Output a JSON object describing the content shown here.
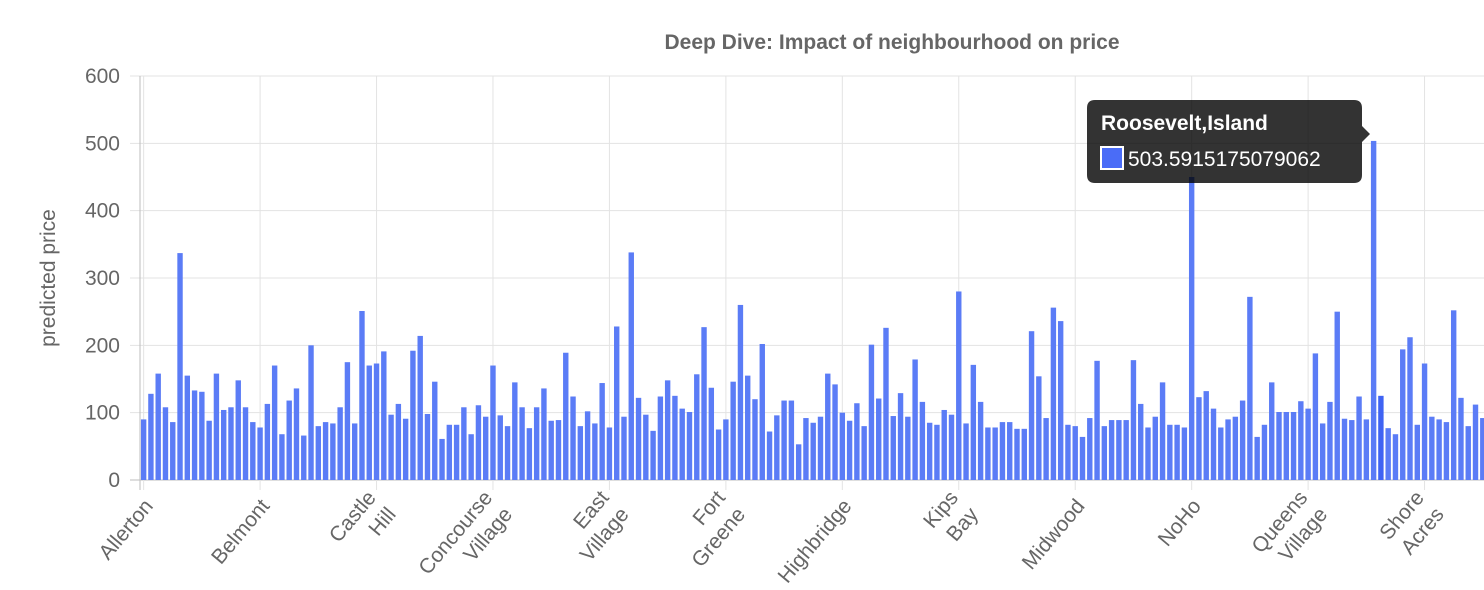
{
  "chart_data": {
    "type": "bar",
    "title": "Deep Dive: Impact of neighbourhood on price",
    "xlabel": "",
    "ylabel": "predicted price",
    "ylim": [
      0,
      600
    ],
    "yticks": [
      0,
      100,
      200,
      300,
      400,
      500,
      600
    ],
    "grid": true,
    "bar_color": "#5b7cf6",
    "highlight_color": "#3f63f3",
    "tick_labels": [
      {
        "index": 0,
        "lines": [
          "Allerton"
        ]
      },
      {
        "index": 16,
        "lines": [
          "Belmont"
        ]
      },
      {
        "index": 32,
        "lines": [
          "Castle",
          "Hill"
        ]
      },
      {
        "index": 48,
        "lines": [
          "Concourse",
          "Village"
        ]
      },
      {
        "index": 64,
        "lines": [
          "East",
          "Village"
        ]
      },
      {
        "index": 80,
        "lines": [
          "Fort",
          "Greene"
        ]
      },
      {
        "index": 96,
        "lines": [
          "Highbridge"
        ]
      },
      {
        "index": 112,
        "lines": [
          "Kips",
          "Bay"
        ]
      },
      {
        "index": 128,
        "lines": [
          "Midwood"
        ]
      },
      {
        "index": 144,
        "lines": [
          "NoHo"
        ]
      },
      {
        "index": 160,
        "lines": [
          "Queens",
          "Village"
        ]
      },
      {
        "index": 176,
        "lines": [
          "Shore",
          "Acres"
        ]
      }
    ],
    "values": [
      90,
      128,
      158,
      108,
      86,
      337,
      155,
      133,
      131,
      88,
      158,
      104,
      108,
      148,
      108,
      86,
      78,
      113,
      170,
      68,
      118,
      136,
      66,
      200,
      80,
      86,
      84,
      108,
      175,
      84,
      251,
      170,
      173,
      191,
      97,
      113,
      91,
      192,
      214,
      98,
      146,
      61,
      82,
      82,
      108,
      68,
      111,
      94,
      170,
      96,
      80,
      145,
      108,
      77,
      108,
      136,
      88,
      89,
      189,
      124,
      80,
      102,
      84,
      144,
      78,
      228,
      94,
      338,
      122,
      97,
      73,
      124,
      148,
      125,
      106,
      101,
      157,
      227,
      137,
      75,
      90,
      146,
      260,
      155,
      120,
      202,
      72,
      96,
      118,
      118,
      53,
      92,
      85,
      94,
      158,
      142,
      100,
      88,
      114,
      80,
      201,
      121,
      226,
      95,
      129,
      94,
      179,
      116,
      85,
      82,
      104,
      97,
      280,
      84,
      171,
      116,
      78,
      78,
      86,
      86,
      76,
      76,
      221,
      154,
      92,
      256,
      236,
      82,
      80,
      64,
      92,
      177,
      80,
      89,
      89,
      89,
      178,
      113,
      78,
      94,
      145,
      82,
      82,
      78,
      450,
      123,
      132,
      106,
      78,
      90,
      94,
      118,
      272,
      64,
      82,
      145,
      101,
      101,
      101,
      117,
      106,
      188,
      84,
      116,
      250,
      91,
      89,
      124,
      90,
      503.5915175079062,
      125,
      77,
      68,
      194,
      212,
      82,
      173,
      94,
      90,
      86,
      252,
      122,
      80,
      112,
      92
    ],
    "tooltip": {
      "index": 170,
      "title": "Roosevelt,Island",
      "value_label": "503.5915175079062"
    }
  }
}
